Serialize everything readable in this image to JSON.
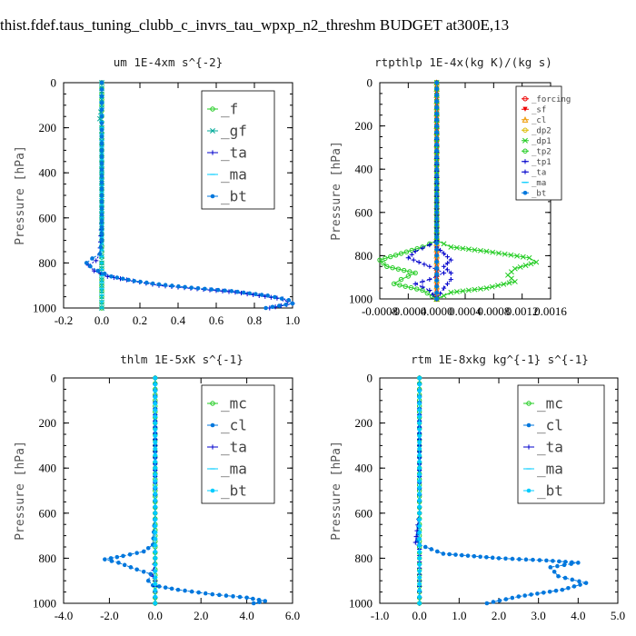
{
  "page": {
    "title": "thist.fdef.taus_tuning_clubb_c_invrs_tau_wpxp_n2_threshm  BUDGET at300E,13"
  },
  "colors": {
    "green": "#22cc22",
    "teal": "#00aa99",
    "blue": "#0000cc",
    "cyan": "#00ccff",
    "bt": "#0077dd",
    "red": "#ee0000",
    "orange": "#ee9900",
    "yellow": "#ddbb00"
  },
  "chart_data": [
    {
      "type": "line",
      "title": "um  1E-4xm s^{-2}",
      "xlabel": "",
      "ylabel": "Pressure [hPa]",
      "xlim": [
        -0.2,
        1.0
      ],
      "ylim": [
        0,
        1000
      ],
      "y_inverted": true,
      "xticks": [
        "-0.2",
        "0.0",
        "0.2",
        "0.4",
        "0.6",
        "0.8",
        "1.0"
      ],
      "yticks": [
        "0",
        "200",
        "400",
        "600",
        "800",
        "1000"
      ],
      "legend_position": "top-right",
      "series": [
        {
          "name": "_f",
          "color": "green",
          "marker": "o",
          "x": [
            0,
            0,
            0,
            0,
            0,
            0,
            0,
            0,
            0,
            0,
            0,
            0
          ],
          "y": [
            0,
            100,
            200,
            300,
            400,
            500,
            600,
            700,
            800,
            900,
            950,
            1000
          ]
        },
        {
          "name": "_gf",
          "color": "teal",
          "marker": "x",
          "x": [
            0,
            0,
            -0.01,
            0,
            0,
            0,
            0,
            0,
            0,
            0
          ],
          "y": [
            0,
            100,
            160,
            200,
            400,
            600,
            800,
            900,
            950,
            1000
          ]
        },
        {
          "name": "_ta",
          "color": "blue",
          "marker": "+",
          "x": [
            0,
            0,
            0,
            0,
            -0.01,
            -0.03,
            -0.07,
            -0.04,
            0.03,
            0.3,
            0.7,
            0.95,
            1.0,
            0.88
          ],
          "y": [
            0,
            200,
            400,
            600,
            760,
            790,
            810,
            835,
            860,
            900,
            930,
            960,
            980,
            1000
          ]
        },
        {
          "name": "_ma",
          "color": "cyan",
          "marker": "-",
          "x": [
            0,
            0,
            0,
            0,
            0,
            0
          ],
          "y": [
            0,
            200,
            400,
            600,
            800,
            1000
          ]
        },
        {
          "name": "_bt",
          "color": "bt",
          "marker": "*",
          "x": [
            0,
            0,
            0,
            0,
            0,
            -0.01,
            -0.05,
            -0.08,
            -0.06,
            -0.02,
            0.05,
            0.17,
            0.3,
            0.47,
            0.68,
            0.87,
            0.98,
            1.0,
            0.86
          ],
          "y": [
            0,
            150,
            300,
            500,
            700,
            760,
            780,
            800,
            815,
            835,
            860,
            880,
            895,
            910,
            925,
            945,
            965,
            980,
            1000
          ]
        }
      ]
    },
    {
      "type": "line",
      "title": "rtpthlp  1E-4x(kg K)/(kg s)",
      "xlabel": "",
      "ylabel": "Pressure [hPa]",
      "xlim": [
        -0.0008,
        0.0016
      ],
      "ylim": [
        0,
        1000
      ],
      "y_inverted": true,
      "xticks": [
        "-0.0008",
        "-0.0004",
        "0.0000",
        "0.0004",
        "0.0008",
        "0.0012",
        "0.0016"
      ],
      "yticks": [
        "0",
        "200",
        "400",
        "600",
        "800",
        "1000"
      ],
      "legend_position": "top-right",
      "series": [
        {
          "name": "_forcing",
          "color": "red",
          "marker": "o",
          "x": [
            0,
            0,
            0,
            0,
            0,
            0
          ],
          "y": [
            0,
            200,
            400,
            600,
            800,
            1000
          ]
        },
        {
          "name": "_sf",
          "color": "red",
          "marker": "v",
          "x": [
            0,
            0,
            0,
            0,
            0,
            0
          ],
          "y": [
            0,
            200,
            400,
            600,
            800,
            1000
          ]
        },
        {
          "name": "_cl",
          "color": "orange",
          "marker": "^",
          "x": [
            0,
            0,
            0,
            0,
            0,
            0
          ],
          "y": [
            0,
            200,
            400,
            600,
            800,
            1000
          ]
        },
        {
          "name": "_dp2",
          "color": "yellow",
          "marker": "o",
          "x": [
            0,
            0,
            0,
            0,
            0,
            0
          ],
          "y": [
            0,
            200,
            400,
            600,
            800,
            1000
          ]
        },
        {
          "name": "_dp1",
          "color": "green",
          "marker": "x",
          "x": [
            0,
            0,
            0.0002,
            0.0007,
            0.0013,
            0.0014,
            0.0011,
            0.001,
            0.0011,
            0.0007,
            0.0002,
            0.0
          ],
          "y": [
            0,
            730,
            760,
            780,
            810,
            830,
            860,
            890,
            920,
            950,
            970,
            1000
          ]
        },
        {
          "name": "_tp2",
          "color": "green",
          "marker": "o",
          "x": [
            0,
            0,
            -0.0002,
            -0.0005,
            -0.0008,
            -0.0007,
            -0.0003,
            -0.0005,
            -0.0006,
            -0.0002,
            0.0
          ],
          "y": [
            0,
            730,
            760,
            790,
            820,
            850,
            880,
            910,
            930,
            960,
            1000
          ]
        },
        {
          "name": "_tp1",
          "color": "blue",
          "marker": "+",
          "x": [
            0,
            0,
            -0.0001,
            -0.0003,
            -0.0004,
            -0.0001,
            0.0001,
            -0.0001,
            -0.0003,
            -0.0001,
            0.0
          ],
          "y": [
            0,
            730,
            750,
            780,
            810,
            850,
            880,
            910,
            930,
            960,
            1000
          ]
        },
        {
          "name": "_ta",
          "color": "blue",
          "marker": "+",
          "x": [
            0,
            0,
            0.0001,
            0.0002,
            0.0001,
            0.0002,
            0.0002,
            0.0001,
            0.0
          ],
          "y": [
            0,
            760,
            790,
            820,
            850,
            880,
            910,
            950,
            1000
          ]
        },
        {
          "name": "_ma",
          "color": "cyan",
          "marker": "-",
          "x": [
            0,
            0,
            0,
            0,
            0,
            0
          ],
          "y": [
            0,
            200,
            400,
            600,
            800,
            1000
          ]
        },
        {
          "name": "_bt",
          "color": "bt",
          "marker": "*",
          "x": [
            0,
            0,
            0,
            0,
            0,
            0
          ],
          "y": [
            0,
            200,
            400,
            600,
            800,
            1000
          ]
        }
      ]
    },
    {
      "type": "line",
      "title": "thlm  1E-5xK s^{-1}",
      "xlabel": "",
      "ylabel": "Pressure [hPa]",
      "xlim": [
        -4.0,
        6.0
      ],
      "ylim": [
        0,
        1000
      ],
      "y_inverted": true,
      "xticks": [
        "-4.0",
        "-2.0",
        "0.0",
        "2.0",
        "4.0",
        "6.0"
      ],
      "yticks": [
        "0",
        "200",
        "400",
        "600",
        "800",
        "1000"
      ],
      "legend_position": "top-right",
      "series": [
        {
          "name": "_mc",
          "color": "green",
          "marker": "o",
          "x": [
            0,
            0,
            0,
            0,
            0,
            0,
            0,
            0,
            0,
            0,
            0,
            0
          ],
          "y": [
            0,
            100,
            200,
            300,
            400,
            500,
            600,
            700,
            800,
            900,
            950,
            1000
          ]
        },
        {
          "name": "_cl",
          "color": "bt",
          "marker": "*",
          "x": [
            0,
            0,
            0,
            -0.1,
            -0.5,
            -1.4,
            -2.2,
            -1.6,
            -0.8,
            -0.2,
            -0.3,
            -0.1,
            1.0,
            2.5,
            4.0,
            4.8,
            4.3
          ],
          "y": [
            0,
            300,
            600,
            740,
            770,
            790,
            805,
            820,
            850,
            870,
            900,
            920,
            940,
            960,
            975,
            990,
            1000
          ]
        },
        {
          "name": "_ta",
          "color": "blue",
          "marker": "+",
          "x": [
            0,
            0,
            0,
            0,
            -0.1,
            0,
            0,
            0
          ],
          "y": [
            0,
            300,
            600,
            800,
            880,
            900,
            950,
            1000
          ]
        },
        {
          "name": "_ma",
          "color": "cyan",
          "marker": "-",
          "x": [
            0,
            0,
            0,
            0,
            0,
            0
          ],
          "y": [
            0,
            200,
            400,
            600,
            800,
            1000
          ]
        },
        {
          "name": "_bt",
          "color": "cyan",
          "marker": "*",
          "x": [
            0,
            0,
            0,
            0,
            0,
            0
          ],
          "y": [
            0,
            200,
            400,
            600,
            800,
            1000
          ]
        }
      ]
    },
    {
      "type": "line",
      "title": "rtm  1E-8xkg kg^{-1} s^{-1}",
      "xlabel": "",
      "ylabel": "Pressure [hPa]",
      "xlim": [
        -1.0,
        5.0
      ],
      "ylim": [
        0,
        1000
      ],
      "y_inverted": true,
      "xticks": [
        "-1.0",
        "0.0",
        "1.0",
        "2.0",
        "3.0",
        "4.0",
        "5.0"
      ],
      "yticks": [
        "0",
        "200",
        "400",
        "600",
        "800",
        "1000"
      ],
      "legend_position": "top-right",
      "series": [
        {
          "name": "_mc",
          "color": "green",
          "marker": "o",
          "x": [
            0,
            0,
            0,
            0,
            0,
            0,
            0,
            0,
            0,
            0,
            0,
            0
          ],
          "y": [
            0,
            100,
            200,
            300,
            400,
            500,
            600,
            700,
            800,
            900,
            950,
            1000
          ]
        },
        {
          "name": "_cl",
          "color": "bt",
          "marker": "*",
          "x": [
            0,
            0,
            0,
            -0.05,
            0,
            0.6,
            2.0,
            3.2,
            4.0,
            3.3,
            3.5,
            4.2,
            3.6,
            2.5,
            1.7
          ],
          "y": [
            0,
            300,
            600,
            720,
            740,
            780,
            800,
            810,
            820,
            840,
            880,
            910,
            940,
            970,
            1000
          ]
        },
        {
          "name": "_ta",
          "color": "blue",
          "marker": "+",
          "x": [
            0,
            0,
            0,
            -0.1,
            0,
            0,
            0
          ],
          "y": [
            0,
            300,
            600,
            730,
            760,
            900,
            1000
          ]
        },
        {
          "name": "_ma",
          "color": "cyan",
          "marker": "-",
          "x": [
            0,
            0,
            0,
            0,
            0,
            0
          ],
          "y": [
            0,
            200,
            400,
            600,
            800,
            1000
          ]
        },
        {
          "name": "_bt",
          "color": "cyan",
          "marker": "*",
          "x": [
            0,
            0,
            0,
            0,
            0,
            0
          ],
          "y": [
            0,
            200,
            400,
            600,
            800,
            1000
          ]
        }
      ]
    }
  ]
}
